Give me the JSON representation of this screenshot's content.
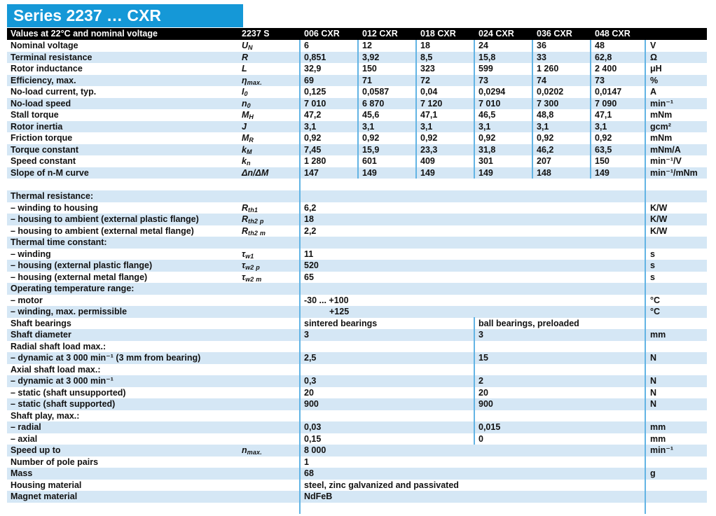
{
  "banner": {
    "title": "Series 2237 … CXR"
  },
  "colors": {
    "brand_blue": "#1598d7",
    "row_stripe": "#d5e7f5",
    "grid_line": "#63b4e4",
    "header_bg": "#000000"
  },
  "table": {
    "header": {
      "label": "Values at 22°C and nominal voltage",
      "columns": [
        "2237 S",
        "006 CXR",
        "012 CXR",
        "018 CXR",
        "024 CXR",
        "036 CXR",
        "048 CXR"
      ]
    },
    "rows": [
      {
        "label": "Nominal voltage",
        "sym": "U",
        "sub": "N",
        "values": [
          "6",
          "12",
          "18",
          "24",
          "36",
          "48"
        ],
        "unit": "V",
        "stripe": false
      },
      {
        "label": "Terminal resistance",
        "sym": "R",
        "values": [
          "0,851",
          "3,92",
          "8,5",
          "15,8",
          "33",
          "62,8"
        ],
        "unit": "Ω",
        "stripe": true
      },
      {
        "label": "Rotor inductance",
        "sym": "L",
        "values": [
          "32,9",
          "150",
          "323",
          "599",
          "1 260",
          "2 400"
        ],
        "unit": "μH",
        "stripe": false
      },
      {
        "label": "Efficiency, max.",
        "sym": "η",
        "sub": "max.",
        "values": [
          "69",
          "71",
          "72",
          "73",
          "74",
          "73"
        ],
        "unit": "%",
        "stripe": true
      },
      {
        "label": "No-load current, typ.",
        "sym": "I",
        "sub": "0",
        "values": [
          "0,125",
          "0,0587",
          "0,04",
          "0,0294",
          "0,0202",
          "0,0147"
        ],
        "unit": "A",
        "stripe": false
      },
      {
        "label": "No-load speed",
        "sym": "n",
        "sub": "0",
        "values": [
          "7 010",
          "6 870",
          "7 120",
          "7 010",
          "7 300",
          "7 090"
        ],
        "unit": "min⁻¹",
        "stripe": true
      },
      {
        "label": "Stall torque",
        "sym": "M",
        "sub": "H",
        "values": [
          "47,2",
          "45,6",
          "47,1",
          "46,5",
          "48,8",
          "47,1"
        ],
        "unit": "mNm",
        "stripe": false
      },
      {
        "label": "Rotor inertia",
        "sym": "J",
        "values": [
          "3,1",
          "3,1",
          "3,1",
          "3,1",
          "3,1",
          "3,1"
        ],
        "unit": "gcm²",
        "stripe": true
      },
      {
        "label": "Friction torque",
        "sym": "M",
        "sub": "R",
        "values": [
          "0,92",
          "0,92",
          "0,92",
          "0,92",
          "0,92",
          "0,92"
        ],
        "unit": "mNm",
        "stripe": false
      },
      {
        "label": "Torque constant",
        "sym": "k",
        "sub": "M",
        "values": [
          "7,45",
          "15,9",
          "23,3",
          "31,8",
          "46,2",
          "63,5"
        ],
        "unit": "mNm/A",
        "stripe": true
      },
      {
        "label": "Speed constant",
        "sym": "k",
        "sub": "n",
        "values": [
          "1 280",
          "601",
          "409",
          "301",
          "207",
          "150"
        ],
        "unit": "min⁻¹/V",
        "stripe": false
      },
      {
        "label": "Slope of n-M curve",
        "sym": "Δn/ΔM",
        "values": [
          "147",
          "149",
          "149",
          "149",
          "148",
          "149"
        ],
        "unit": "min⁻¹/mNm",
        "stripe": true
      },
      {
        "type": "gap"
      },
      {
        "label": "Thermal resistance:",
        "stripe": true
      },
      {
        "label": "– winding to housing",
        "sym": "R",
        "sub": "th1",
        "value": "6,2",
        "unit": "K/W",
        "stripe": false
      },
      {
        "label": "– housing to ambient (external plastic flange)",
        "sym": "R",
        "sub": "th2 p",
        "value": "18",
        "unit": "K/W",
        "stripe": true
      },
      {
        "label": "– housing to ambient (external metal flange)",
        "sym": "R",
        "sub": "th2 m",
        "value": "2,2",
        "unit": "K/W",
        "stripe": false
      },
      {
        "label": "Thermal time constant:",
        "stripe": true
      },
      {
        "label": "– winding",
        "sym": "τ",
        "sub": "w1",
        "value": "11",
        "unit": "s",
        "stripe": false
      },
      {
        "label": "– housing (external plastic flange)",
        "sym": "τ",
        "sub": "w2 p",
        "value": "520",
        "unit": "s",
        "stripe": true
      },
      {
        "label": "– housing (external metal flange)",
        "sym": "τ",
        "sub": "w2 m",
        "value": "65",
        "unit": "s",
        "stripe": false
      },
      {
        "label": "Operating temperature range:",
        "stripe": true
      },
      {
        "label": "– motor",
        "value": "-30  ... +100",
        "unit": "°C",
        "stripe": false
      },
      {
        "label": "– winding, max. permissible",
        "value": "+125",
        "indent": true,
        "unit": "°C",
        "stripe": true
      },
      {
        "label": "Shaft bearings",
        "v1": "sintered bearings",
        "v2": "ball bearings, preloaded",
        "unit": "",
        "stripe": false
      },
      {
        "label": "Shaft diameter",
        "v1": "3",
        "v2": "3",
        "unit": "mm",
        "stripe": true
      },
      {
        "label": "Radial shaft load max.:",
        "stripe": false
      },
      {
        "label": "– dynamic at 3 000 min⁻¹ (3 mm from bearing)",
        "v1": "2,5",
        "v2": "15",
        "unit": "N",
        "stripe": true
      },
      {
        "label": "Axial shaft load max.:",
        "stripe": false
      },
      {
        "label": "– dynamic at 3 000 min⁻¹",
        "v1": "0,3",
        "v2": "2",
        "unit": "N",
        "stripe": true
      },
      {
        "label": "– static (shaft unsupported)",
        "v1": "20",
        "v2": "20",
        "unit": "N",
        "stripe": false
      },
      {
        "label": "– static (shaft supported)",
        "v1": "900",
        "v2": "900",
        "unit": "N",
        "stripe": true
      },
      {
        "label": "Shaft play, max.:",
        "stripe": false
      },
      {
        "label": "– radial",
        "v1": "0,03",
        "v2": "0,015",
        "unit": "mm",
        "stripe": true
      },
      {
        "label": "– axial",
        "v1": "0,15",
        "v2": "0",
        "unit": "mm",
        "stripe": false
      },
      {
        "label": "Speed up to",
        "sym": "n",
        "sub": "max.",
        "value": "8 000",
        "unit": "min⁻¹",
        "stripe": true
      },
      {
        "label": "Number of pole pairs",
        "value": "1",
        "stripe": false
      },
      {
        "label": "Mass",
        "value": "68",
        "unit": "g",
        "stripe": true
      },
      {
        "label": "Housing material",
        "value": "steel, zinc galvanized and passivated",
        "stripe": false
      },
      {
        "label": "Magnet material",
        "value": "NdFeB",
        "stripe": true
      },
      {
        "label": "",
        "stripe": false
      }
    ]
  }
}
